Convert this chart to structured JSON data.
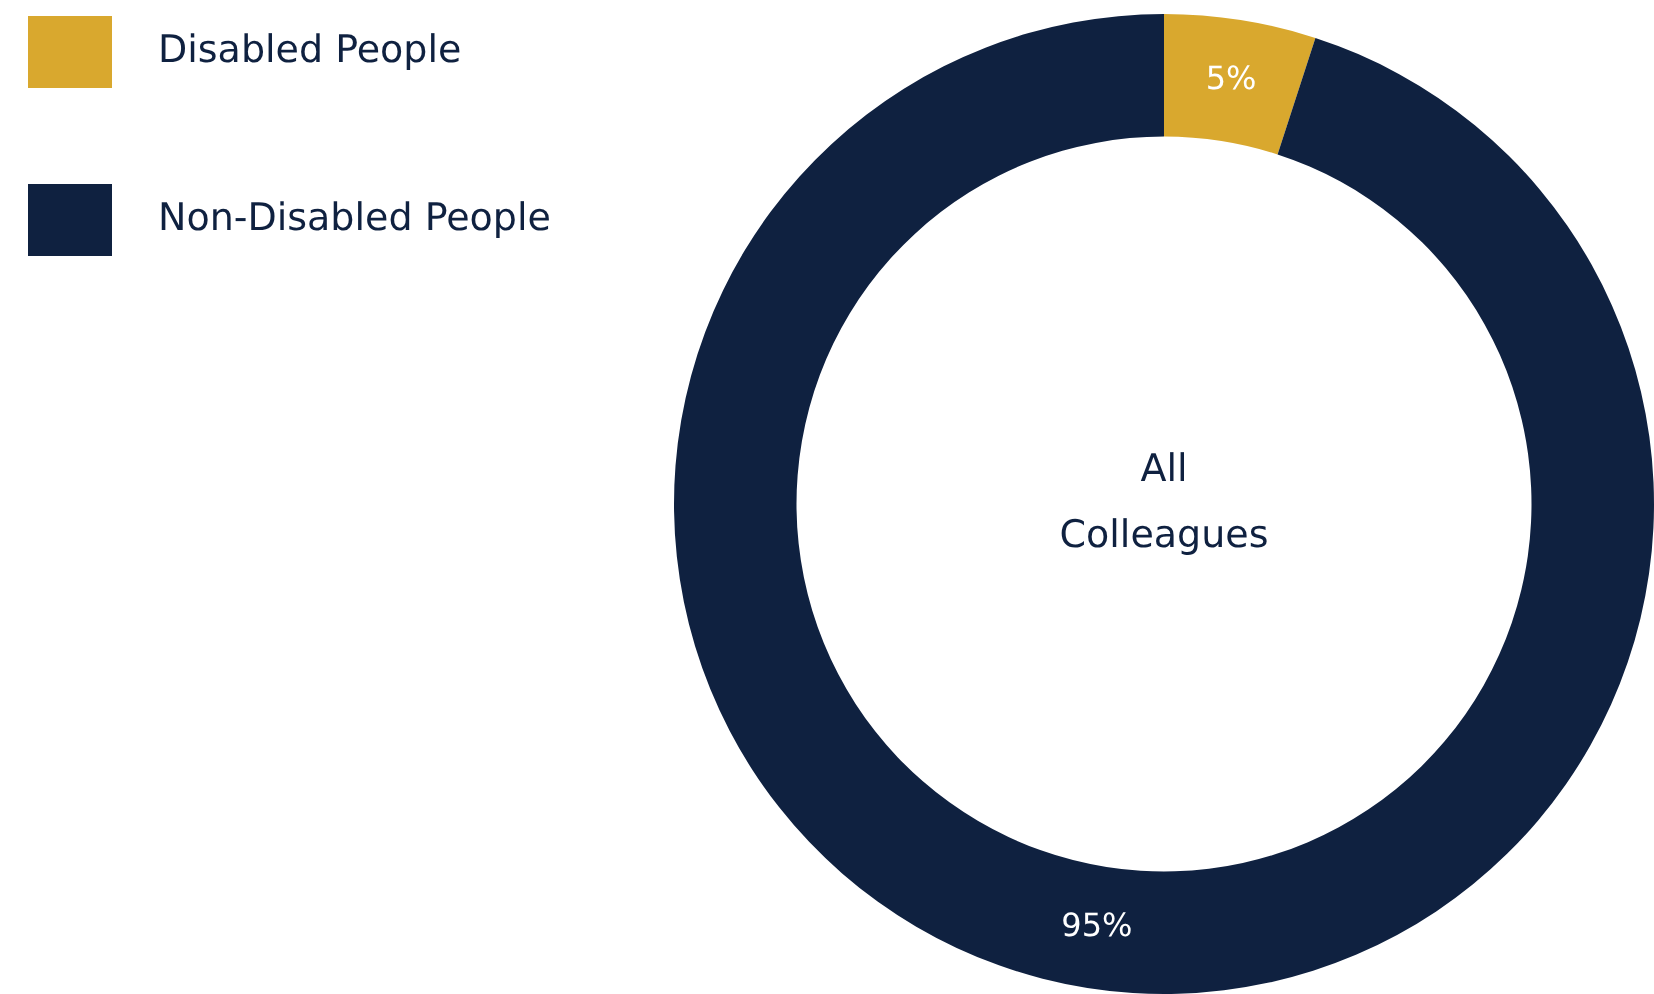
{
  "chart_data": {
    "type": "donut",
    "title": "All Colleagues",
    "categories": [
      "Disabled People",
      "Non-Disabled People"
    ],
    "values": [
      5,
      95
    ],
    "colors": [
      "#d9a82e",
      "#0f2140"
    ],
    "value_labels": [
      "5%",
      "95%"
    ],
    "legend": "top left"
  }
}
